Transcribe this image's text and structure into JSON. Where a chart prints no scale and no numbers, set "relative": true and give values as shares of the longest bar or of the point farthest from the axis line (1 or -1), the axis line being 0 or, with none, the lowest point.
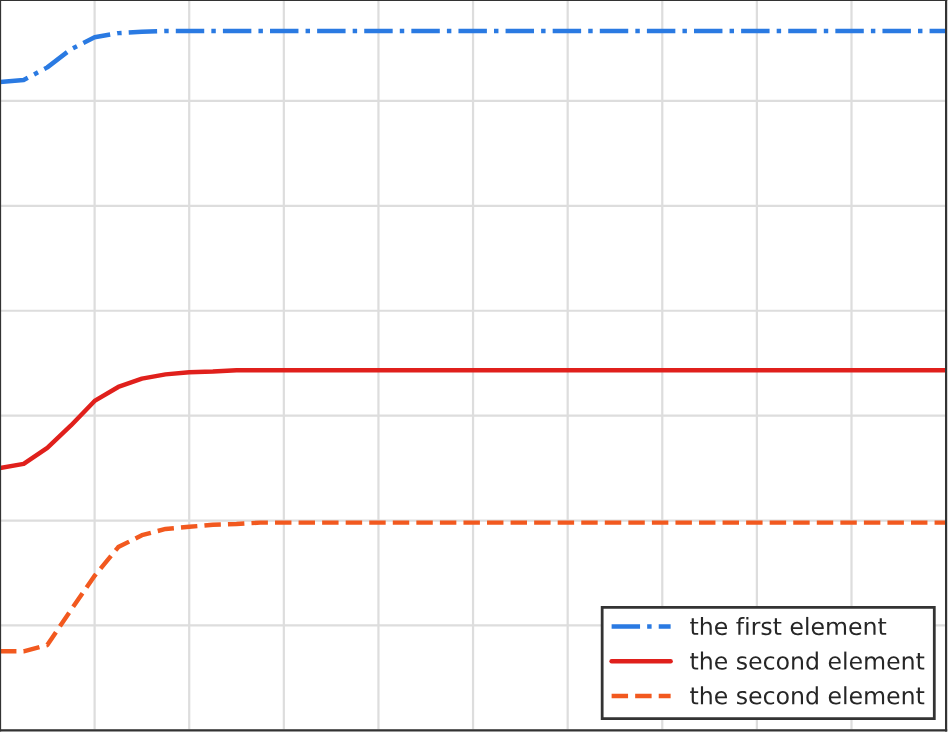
{
  "chart_data": {
    "type": "line",
    "relative": true,
    "grid": true,
    "legend": "bottom right",
    "categories": [
      null,
      null,
      null,
      null,
      null,
      null,
      null,
      null,
      null,
      null,
      null,
      null,
      null,
      null,
      null,
      null,
      null,
      null,
      null,
      null,
      null,
      null,
      null,
      null,
      null,
      null,
      null,
      null,
      null,
      null,
      null,
      null,
      null,
      null,
      null,
      null,
      null,
      null,
      null,
      null,
      null
    ],
    "series": [
      {
        "name": "the first element",
        "color": "#2a7ae2",
        "line_style": "dashdot",
        "values": [
          0.927,
          0.93,
          0.948,
          0.974,
          0.991,
          0.997,
          0.999,
          1,
          1,
          1,
          1,
          1,
          1,
          1,
          1,
          1,
          1,
          1,
          1,
          1,
          1,
          1,
          1,
          1,
          1,
          1,
          1,
          1,
          1,
          1,
          1,
          1,
          1,
          1,
          1,
          1,
          1,
          1,
          1,
          1,
          1
        ]
      },
      {
        "name": "the second element",
        "color": "#e0201c",
        "line_style": "solid",
        "values": [
          0.375,
          0.381,
          0.404,
          0.436,
          0.471,
          0.491,
          0.503,
          0.509,
          0.512,
          0.513,
          0.515,
          0.515,
          0.515,
          0.515,
          0.515,
          0.515,
          0.515,
          0.515,
          0.515,
          0.515,
          0.515,
          0.515,
          0.515,
          0.515,
          0.515,
          0.515,
          0.515,
          0.515,
          0.515,
          0.515,
          0.515,
          0.515,
          0.515,
          0.515,
          0.515,
          0.515,
          0.515,
          0.515,
          0.515,
          0.515,
          0.515
        ]
      },
      {
        "name": "the second element",
        "color": "#f2591f",
        "line_style": "dashed",
        "values": [
          0.113,
          0.113,
          0.122,
          0.172,
          0.221,
          0.262,
          0.279,
          0.288,
          0.291,
          0.294,
          0.295,
          0.297,
          0.297,
          0.297,
          0.297,
          0.297,
          0.297,
          0.297,
          0.297,
          0.297,
          0.297,
          0.297,
          0.297,
          0.297,
          0.297,
          0.297,
          0.297,
          0.297,
          0.297,
          0.297,
          0.297,
          0.297,
          0.297,
          0.297,
          0.297,
          0.297,
          0.297,
          0.297,
          0.297,
          0.297,
          0.297
        ]
      }
    ]
  }
}
